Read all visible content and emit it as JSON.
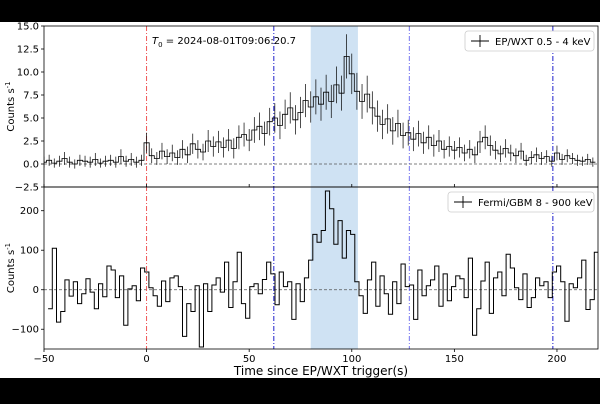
{
  "chart_data": [
    {
      "type": "line",
      "panel": "top",
      "drawstyle": "steps-mid",
      "annotation": "T0 = 2024-08-01T09:06:20.7",
      "annotation_prefix": "T",
      "annotation_sub": "0",
      "annotation_rest": " = 2024-08-01T09:06:20.7",
      "ylabel_main": "Counts s",
      "ylabel_sup": "-1",
      "ylim": [
        -2.5,
        15.0
      ],
      "yticks": [
        -2.5,
        0.0,
        2.5,
        5.0,
        7.5,
        10.0,
        12.5,
        15.0
      ],
      "ytick_labels": [
        "−2.5",
        "0.0",
        "2.5",
        "5.0",
        "7.5",
        "10.0",
        "12.5",
        "15.0"
      ],
      "series": [
        {
          "name": "EP/WXT 0.5 - 4 keV",
          "x_start": -50,
          "bin_width": 2.5,
          "values": [
            0.2,
            0.4,
            0.1,
            0.3,
            0.6,
            0.2,
            0.0,
            0.4,
            0.3,
            0.2,
            0.5,
            0.1,
            0.3,
            0.4,
            0.2,
            0.8,
            0.3,
            0.5,
            0.2,
            0.4,
            2.3,
            0.9,
            0.6,
            1.4,
            0.8,
            1.2,
            0.7,
            1.6,
            1.0,
            2.2,
            1.6,
            1.3,
            2.5,
            1.9,
            2.4,
            1.8,
            2.6,
            1.7,
            2.9,
            3.2,
            2.6,
            3.7,
            4.1,
            3.3,
            4.6,
            5.0,
            4.2,
            5.4,
            6.1,
            4.8,
            5.6,
            6.9,
            6.2,
            7.3,
            6.5,
            7.8,
            6.8,
            8.6,
            7.7,
            11.7,
            9.8,
            7.9,
            6.8,
            7.6,
            6.1,
            5.2,
            4.3,
            4.9,
            3.6,
            4.4,
            3.1,
            3.4,
            2.7,
            3.3,
            2.3,
            2.9,
            2.0,
            2.5,
            1.6,
            1.9,
            1.5,
            1.8,
            1.2,
            1.6,
            1.0,
            2.4,
            2.9,
            2.0,
            1.5,
            1.1,
            1.7,
            1.2,
            0.9,
            1.4,
            0.4,
            0.7,
            1.0,
            0.6,
            0.8,
            0.3,
            1.2,
            0.5,
            0.9,
            0.6,
            0.4,
            0.3,
            0.5,
            0.2
          ],
          "errors": [
            0.6,
            0.6,
            0.5,
            0.6,
            0.7,
            0.6,
            0.5,
            0.6,
            0.6,
            0.6,
            0.7,
            0.5,
            0.6,
            0.6,
            0.6,
            0.8,
            0.6,
            0.7,
            0.6,
            0.6,
            1.1,
            0.8,
            0.7,
            0.9,
            0.8,
            0.9,
            0.8,
            1.0,
            0.9,
            1.1,
            1.0,
            0.9,
            1.2,
            1.1,
            1.2,
            1.1,
            1.2,
            1.1,
            1.3,
            1.3,
            1.2,
            1.4,
            1.5,
            1.3,
            1.5,
            1.6,
            1.5,
            1.6,
            1.7,
            1.6,
            1.7,
            1.8,
            1.7,
            1.9,
            1.8,
            1.9,
            1.8,
            2.0,
            1.9,
            2.4,
            2.2,
            2.0,
            1.9,
            2.0,
            1.8,
            1.7,
            1.6,
            1.6,
            1.5,
            1.5,
            1.4,
            1.4,
            1.3,
            1.4,
            1.2,
            1.3,
            1.2,
            1.2,
            1.0,
            1.1,
            1.0,
            1.1,
            0.9,
            1.0,
            0.9,
            1.2,
            1.3,
            1.1,
            1.0,
            0.9,
            1.0,
            0.9,
            0.8,
            0.9,
            0.6,
            0.7,
            0.8,
            0.7,
            0.7,
            0.6,
            0.8,
            0.6,
            0.7,
            0.6,
            0.6,
            0.5,
            0.6,
            0.5
          ]
        }
      ],
      "legend_position": "upper right"
    },
    {
      "type": "line",
      "panel": "bottom",
      "drawstyle": "steps-mid",
      "ylabel_main": "Counts s",
      "ylabel_sup": "-1",
      "ylim": [
        -150,
        260
      ],
      "yticks": [
        -100,
        0,
        100,
        200
      ],
      "ytick_labels": [
        "−100",
        "0",
        "100",
        "200"
      ],
      "xlabel": "Time since EP/WXT trigger(s)",
      "xlim": [
        -50,
        220
      ],
      "xticks": [
        -50,
        0,
        50,
        100,
        150,
        200
      ],
      "xtick_labels": [
        "−50",
        "0",
        "50",
        "100",
        "150",
        "200"
      ],
      "series": [
        {
          "name": "Fermi/GBM 8 - 900 keV",
          "x_start": -47,
          "bin_width": 2.048,
          "values": [
            -48,
            105,
            -82,
            -55,
            25,
            -16,
            20,
            -35,
            -10,
            28,
            -6,
            -48,
            15,
            -18,
            60,
            50,
            -20,
            35,
            -90,
            2,
            10,
            -28,
            55,
            45,
            5,
            -15,
            -42,
            22,
            -30,
            30,
            35,
            8,
            -118,
            -35,
            -55,
            10,
            -145,
            15,
            -55,
            12,
            30,
            -6,
            70,
            -45,
            20,
            95,
            -35,
            -72,
            8,
            15,
            -10,
            26,
            70,
            40,
            -38,
            45,
            8,
            20,
            -75,
            15,
            -30,
            30,
            75,
            140,
            120,
            150,
            250,
            205,
            115,
            175,
            80,
            150,
            140,
            20,
            -15,
            -60,
            25,
            70,
            -42,
            35,
            -10,
            -62,
            20,
            -35,
            65,
            8,
            12,
            -75,
            50,
            -15,
            10,
            25,
            60,
            -42,
            40,
            -28,
            8,
            35,
            28,
            -20,
            80,
            -115,
            -48,
            22,
            70,
            -60,
            30,
            45,
            -15,
            90,
            55,
            5,
            -25,
            40,
            -45,
            -20,
            30,
            10,
            20,
            -20,
            45,
            60,
            20,
            -80,
            15,
            5,
            30,
            75,
            -50,
            -25,
            95,
            20,
            -5,
            -40,
            25,
            20
          ],
          "x_after_gap": 180,
          "values_after_gap": []
        }
      ],
      "legend_position": "upper right"
    }
  ],
  "markers": {
    "shaded_interval": [
      80,
      103
    ],
    "shade_color": "#cfe2f3",
    "red_line_x": 0,
    "blue_dashdot_lines": [
      62,
      198
    ],
    "blue_thin_dashdot_lines": [
      128
    ],
    "zero_dashed_color": "#555555",
    "red_color": "#ee4444",
    "blue_color": "#1f1fcc"
  },
  "colors": {
    "background": "#000000",
    "plot_bg": "#ffffff",
    "data": "#000000"
  }
}
